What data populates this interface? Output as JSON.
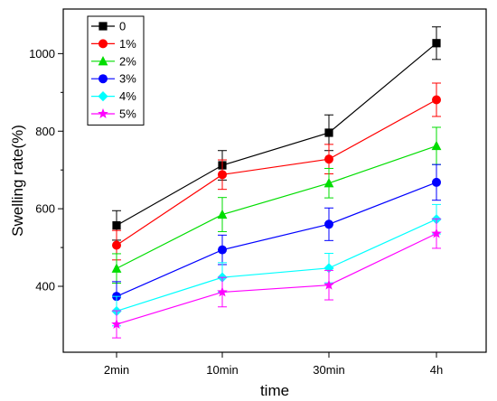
{
  "chart_data": {
    "type": "line",
    "title": "",
    "xlabel": "time",
    "ylabel": "Swelling rate(%)",
    "categories": [
      "2min",
      "10min",
      "30min",
      "4h"
    ],
    "ylim": [
      230,
      1115
    ],
    "yticks": [
      400,
      600,
      800,
      1000
    ],
    "grid": false,
    "legend_position": "top-left",
    "series": [
      {
        "name": "0",
        "color": "#000000",
        "marker": "square",
        "values": [
          557,
          712,
          796,
          1027
        ],
        "errors": [
          38,
          38,
          46,
          42
        ]
      },
      {
        "name": "1%",
        "color": "#ff0000",
        "marker": "circle",
        "values": [
          506,
          688,
          728,
          881
        ],
        "errors": [
          38,
          38,
          38,
          43
        ]
      },
      {
        "name": "2%",
        "color": "#00dd00",
        "marker": "triangle",
        "values": [
          446,
          585,
          666,
          762
        ],
        "errors": [
          38,
          44,
          38,
          48
        ]
      },
      {
        "name": "3%",
        "color": "#0000ff",
        "marker": "circle",
        "values": [
          374,
          494,
          560,
          668
        ],
        "errors": [
          38,
          38,
          42,
          46
        ]
      },
      {
        "name": "4%",
        "color": "#00ffff",
        "marker": "diamond",
        "values": [
          336,
          423,
          447,
          573
        ],
        "errors": [
          38,
          38,
          38,
          38
        ]
      },
      {
        "name": "5%",
        "color": "#ff00ff",
        "marker": "star",
        "values": [
          302,
          385,
          403,
          536
        ],
        "errors": [
          35,
          38,
          38,
          38
        ]
      }
    ]
  }
}
